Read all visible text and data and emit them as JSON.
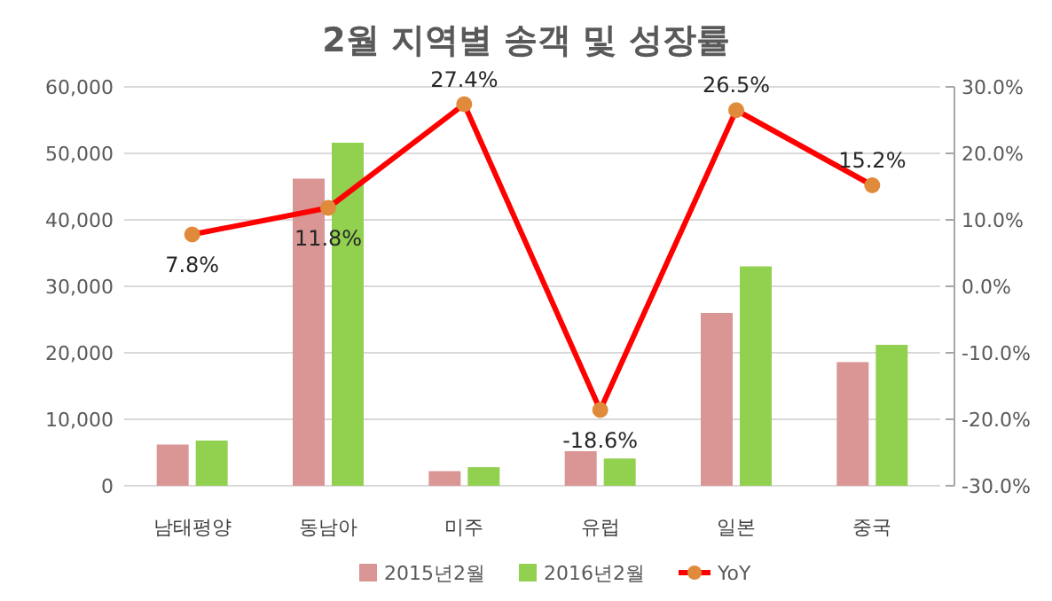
{
  "chart_data": {
    "type": "bar",
    "title": "2월 지역별 송객 및 성장률",
    "categories": [
      "남태평양",
      "동남아",
      "미주",
      "유럽",
      "일본",
      "중국"
    ],
    "series": [
      {
        "name": "2015년2월",
        "color": "#d99694",
        "values": [
          6200,
          46200,
          2200,
          5200,
          26000,
          18600
        ]
      },
      {
        "name": "2016년2월",
        "color": "#92d050",
        "values": [
          6800,
          51600,
          2800,
          4100,
          33000,
          21200
        ]
      },
      {
        "name": "YoY",
        "type": "line",
        "axis": "y2",
        "color": "#ff0000",
        "colors": [
          "#e08a3c",
          "#e08a3c",
          "#e08a3c",
          "#e08a3c",
          "#e08a3c",
          "#e08a3c"
        ],
        "marker": "circle",
        "values": [
          7.8,
          11.8,
          27.4,
          -18.6,
          26.5,
          15.2
        ],
        "value_labels": [
          "7.8%",
          "11.8%",
          "27.4%",
          "-18.6%",
          "26.5%",
          "15.2%"
        ]
      }
    ],
    "ylim": [
      0,
      60000
    ],
    "yticks": [
      {
        "value": 0,
        "label": "0"
      },
      {
        "value": 10000,
        "label": "10,000"
      },
      {
        "value": 20000,
        "label": "20,000"
      },
      {
        "value": 30000,
        "label": "30,000"
      },
      {
        "value": 40000,
        "label": "40,000"
      },
      {
        "value": 50000,
        "label": "50,000"
      },
      {
        "value": 60000,
        "label": "60,000"
      }
    ],
    "y2lim": [
      -30,
      30
    ],
    "y2ticks": [
      {
        "value": -30,
        "label": "-30.0%"
      },
      {
        "value": -20,
        "label": "-20.0%"
      },
      {
        "value": -10,
        "label": "-10.0%"
      },
      {
        "value": 0,
        "label": "0.0%"
      },
      {
        "value": 10,
        "label": "10.0%"
      },
      {
        "value": 20,
        "label": "20.0%"
      },
      {
        "value": 30,
        "label": "30.0%"
      }
    ],
    "grid": "y",
    "legend": "bottom"
  }
}
